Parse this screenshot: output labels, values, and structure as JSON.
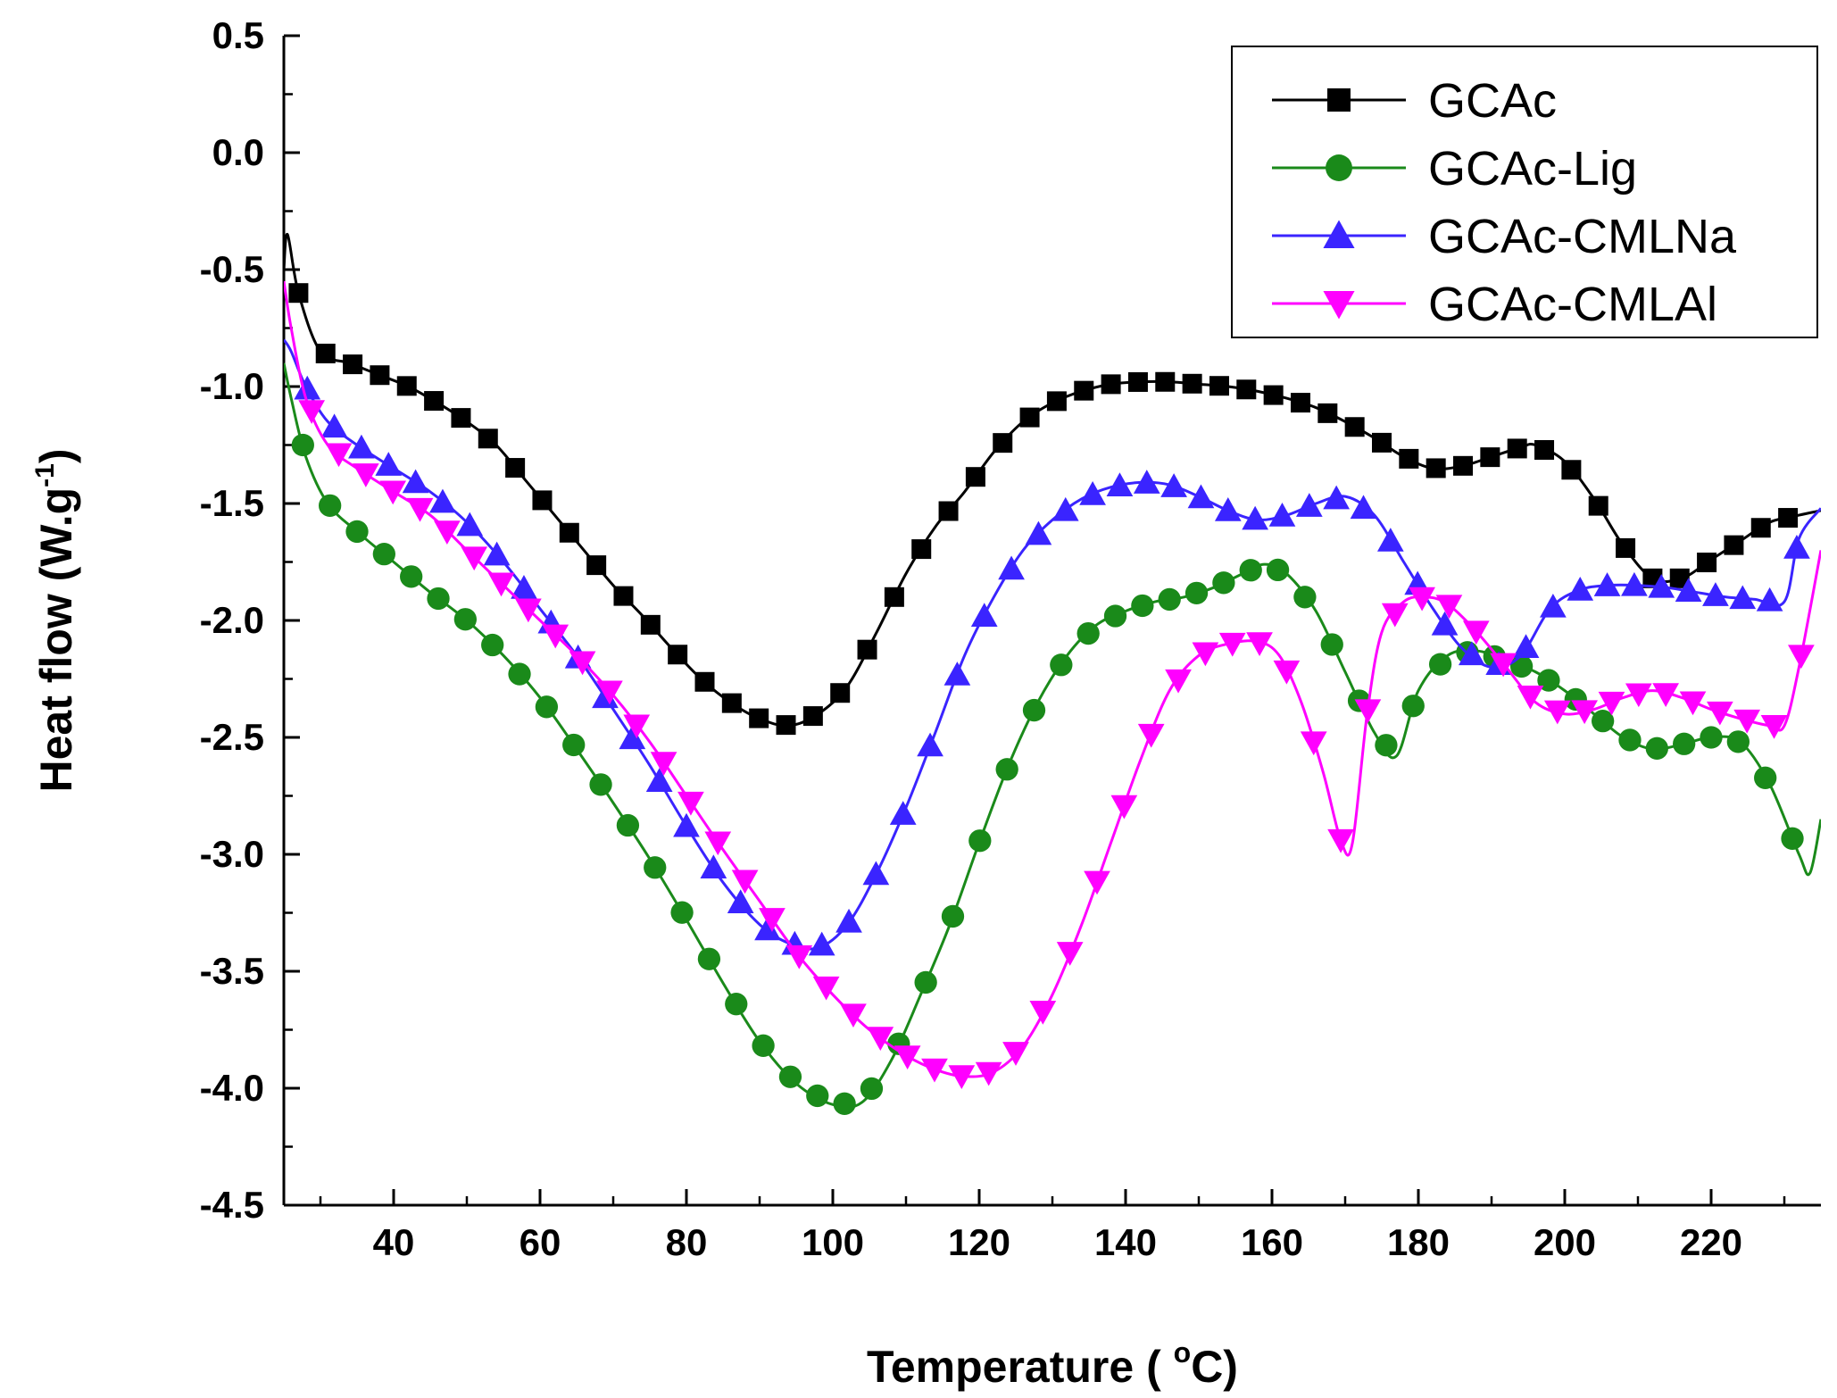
{
  "chart_data": {
    "type": "line",
    "title": "",
    "xlabel": "Temperature ( °C)",
    "xlabel_parts": [
      "Temperature ( ",
      "o",
      "C)"
    ],
    "ylabel": "Heat flow (W.g-1)",
    "ylabel_parts": [
      "Heat flow (W.g",
      "-1",
      ")"
    ],
    "xlim": [
      25,
      235
    ],
    "ylim": [
      -4.5,
      0.5
    ],
    "xticks": [
      40,
      60,
      80,
      100,
      120,
      140,
      160,
      180,
      200,
      220
    ],
    "xtick_labels": [
      "40",
      "60",
      "80",
      "100",
      "120",
      "140",
      "160",
      "180",
      "200",
      "220"
    ],
    "yticks": [
      0.5,
      0.0,
      -0.5,
      -1.0,
      -1.5,
      -2.0,
      -2.5,
      -3.0,
      -3.5,
      -4.0,
      -4.5
    ],
    "ytick_labels": [
      "0.5",
      "0.0",
      "-0.5",
      "-1.0",
      "-1.5",
      "-2.0",
      "-2.5",
      "-3.0",
      "-3.5",
      "-4.0",
      "-4.5"
    ],
    "grid": false,
    "legend_position": "top-right",
    "series": [
      {
        "name": "GCAc",
        "color": "#000000",
        "marker": "square",
        "x": [
          25,
          25.5,
          27,
          30,
          34,
          38,
          42,
          46,
          50,
          54,
          58,
          62,
          66,
          70,
          74,
          78,
          82,
          86,
          90,
          94,
          98,
          102,
          106,
          110,
          114,
          118,
          122,
          126,
          130,
          134,
          138,
          142,
          146,
          150,
          154,
          158,
          162,
          166,
          170,
          174,
          178,
          182,
          186,
          190,
          194,
          196,
          200,
          204,
          208,
          212,
          216,
          220,
          224,
          228,
          232,
          235
        ],
        "y": [
          -0.5,
          -0.35,
          -0.6,
          -0.85,
          -0.9,
          -0.95,
          -1.0,
          -1.07,
          -1.15,
          -1.25,
          -1.4,
          -1.55,
          -1.7,
          -1.85,
          -1.98,
          -2.12,
          -2.25,
          -2.35,
          -2.42,
          -2.45,
          -2.4,
          -2.28,
          -2.05,
          -1.8,
          -1.6,
          -1.45,
          -1.28,
          -1.15,
          -1.07,
          -1.02,
          -0.99,
          -0.98,
          -0.98,
          -0.99,
          -1.0,
          -1.02,
          -1.05,
          -1.09,
          -1.15,
          -1.22,
          -1.3,
          -1.35,
          -1.34,
          -1.3,
          -1.26,
          -1.25,
          -1.32,
          -1.48,
          -1.68,
          -1.82,
          -1.82,
          -1.74,
          -1.66,
          -1.58,
          -1.55,
          -1.53
        ]
      },
      {
        "name": "GCAc-Lig",
        "color": "#1a8a1a",
        "marker": "circle",
        "x": [
          25,
          26,
          28,
          31,
          35,
          40,
          45,
          50,
          55,
          60,
          65,
          70,
          75,
          80,
          85,
          90,
          95,
          100,
          104,
          108,
          112,
          116,
          120,
          124,
          128,
          132,
          136,
          140,
          144,
          148,
          152,
          156,
          159,
          162,
          166,
          170,
          174,
          177,
          180,
          184,
          188,
          192,
          196,
          200,
          204,
          208,
          212,
          216,
          220,
          224,
          228,
          232,
          233.5,
          235
        ],
        "y": [
          -0.9,
          -1.05,
          -1.3,
          -1.5,
          -1.62,
          -1.75,
          -1.88,
          -2.0,
          -2.15,
          -2.33,
          -2.55,
          -2.78,
          -3.02,
          -3.28,
          -3.55,
          -3.8,
          -3.98,
          -4.07,
          -4.06,
          -3.88,
          -3.6,
          -3.3,
          -2.95,
          -2.62,
          -2.35,
          -2.15,
          -2.02,
          -1.96,
          -1.92,
          -1.9,
          -1.86,
          -1.8,
          -1.76,
          -1.8,
          -1.96,
          -2.22,
          -2.48,
          -2.58,
          -2.3,
          -2.15,
          -2.13,
          -2.17,
          -2.22,
          -2.3,
          -2.4,
          -2.5,
          -2.55,
          -2.53,
          -2.5,
          -2.52,
          -2.7,
          -3.0,
          -3.08,
          -2.85
        ]
      },
      {
        "name": "GCAc-CMLNa",
        "color": "#3a24ff",
        "marker": "triangle-up",
        "x": [
          25,
          26,
          28,
          31,
          35,
          40,
          45,
          50,
          55,
          60,
          65,
          70,
          75,
          80,
          85,
          90,
          94,
          98,
          102,
          106,
          110,
          114,
          118,
          122,
          126,
          130,
          134,
          138,
          142,
          146,
          150,
          154,
          158,
          162,
          166,
          170,
          174,
          178,
          182,
          186,
          190,
          194,
          198,
          202,
          206,
          210,
          214,
          218,
          222,
          226,
          230,
          232,
          235
        ],
        "y": [
          -0.8,
          -0.85,
          -1.0,
          -1.15,
          -1.25,
          -1.35,
          -1.45,
          -1.58,
          -1.75,
          -1.95,
          -2.15,
          -2.38,
          -2.62,
          -2.88,
          -3.12,
          -3.3,
          -3.38,
          -3.4,
          -3.3,
          -3.08,
          -2.8,
          -2.48,
          -2.15,
          -1.9,
          -1.7,
          -1.57,
          -1.48,
          -1.43,
          -1.41,
          -1.42,
          -1.47,
          -1.53,
          -1.57,
          -1.55,
          -1.5,
          -1.47,
          -1.55,
          -1.75,
          -1.95,
          -2.12,
          -2.2,
          -2.15,
          -1.95,
          -1.87,
          -1.85,
          -1.85,
          -1.86,
          -1.88,
          -1.9,
          -1.91,
          -1.92,
          -1.65,
          -1.52
        ]
      },
      {
        "name": "GCAc-CMLAl",
        "color": "#ff00ff",
        "marker": "triangle-down",
        "x": [
          25,
          26,
          28,
          31,
          35,
          40,
          45,
          50,
          55,
          60,
          65,
          70,
          75,
          80,
          85,
          90,
          95,
          100,
          105,
          110,
          114,
          118,
          122,
          126,
          130,
          134,
          138,
          142,
          146,
          150,
          154,
          158,
          161,
          164,
          167,
          169.5,
          171,
          173,
          175,
          178,
          181,
          184,
          188,
          192,
          196,
          200,
          204,
          208,
          212,
          216,
          220,
          224,
          228,
          230,
          232,
          235
        ],
        "y": [
          -0.55,
          -0.75,
          -1.05,
          -1.25,
          -1.35,
          -1.45,
          -1.55,
          -1.7,
          -1.85,
          -2.0,
          -2.15,
          -2.32,
          -2.52,
          -2.75,
          -2.98,
          -3.2,
          -3.42,
          -3.6,
          -3.75,
          -3.86,
          -3.92,
          -3.95,
          -3.93,
          -3.82,
          -3.6,
          -3.3,
          -2.95,
          -2.6,
          -2.3,
          -2.15,
          -2.1,
          -2.09,
          -2.15,
          -2.35,
          -2.65,
          -2.95,
          -2.95,
          -2.4,
          -2.05,
          -1.92,
          -1.9,
          -1.93,
          -2.05,
          -2.2,
          -2.35,
          -2.4,
          -2.38,
          -2.33,
          -2.3,
          -2.33,
          -2.38,
          -2.42,
          -2.45,
          -2.45,
          -2.2,
          -1.7
        ]
      }
    ]
  }
}
